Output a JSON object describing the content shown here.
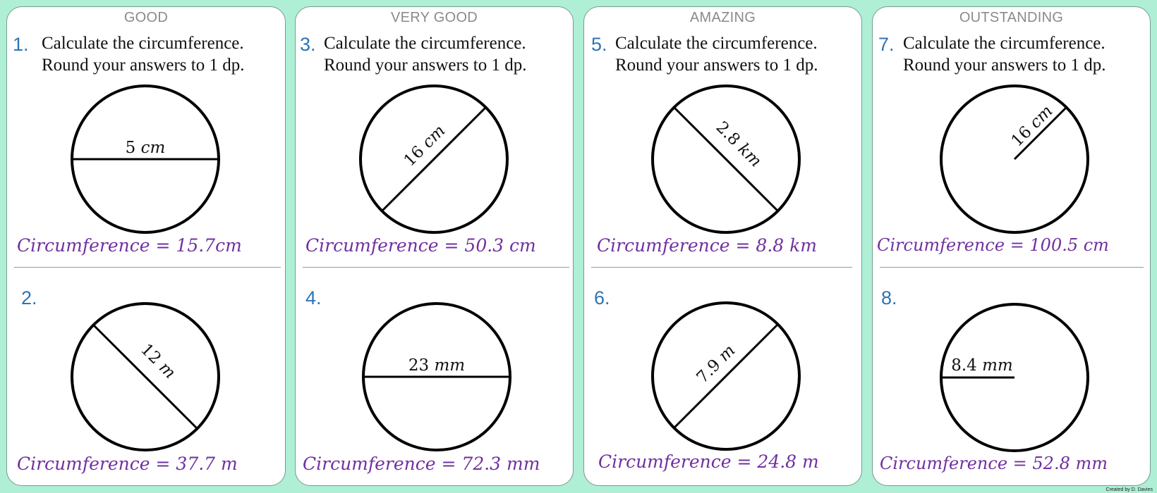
{
  "cards": [
    {
      "level": "GOOD",
      "q1_num": "1.",
      "q2_num": "2.",
      "instr_line1": "Calculate the circumference.",
      "instr_line2": "Round your answers to 1 dp.",
      "q1_num_label": "5",
      "q1_unit": "cm",
      "q2_num_label": "12",
      "q2_unit": "m",
      "q1_answer": "Circumference = 15.7cm",
      "q2_answer": "Circumference = 37.7 m"
    },
    {
      "level": "VERY GOOD",
      "q1_num": "3.",
      "q2_num": "4.",
      "instr_line1": "Calculate the circumference.",
      "instr_line2": "Round your answers to 1 dp.",
      "q1_num_label": "16",
      "q1_unit": "cm",
      "q2_num_label": "23",
      "q2_unit": "mm",
      "q1_answer": "Circumference = 50.3 cm",
      "q2_answer": "Circumference = 72.3 mm"
    },
    {
      "level": "AMAZING",
      "q1_num": "5.",
      "q2_num": "6.",
      "instr_line1": "Calculate the circumference.",
      "instr_line2": "Round your answers to 1 dp.",
      "q1_num_label": "2.8",
      "q1_unit": "km",
      "q2_num_label": "7.9",
      "q2_unit": "m",
      "q1_answer": "Circumference = 8.8 km",
      "q2_answer": "Circumference = 24.8 m"
    },
    {
      "level": "OUTSTANDING",
      "q1_num": "7.",
      "q2_num": "8.",
      "instr_line1": "Calculate the circumference.",
      "instr_line2": "Round your answers to 1 dp.",
      "q1_num_label": "16",
      "q1_unit": "cm",
      "q2_num_label": "8.4",
      "q2_unit": "mm",
      "q1_answer": "Circumference = 100.5 cm",
      "q2_answer": "Circumference = 52.8 mm"
    }
  ],
  "credit": "Created by D. Davies"
}
